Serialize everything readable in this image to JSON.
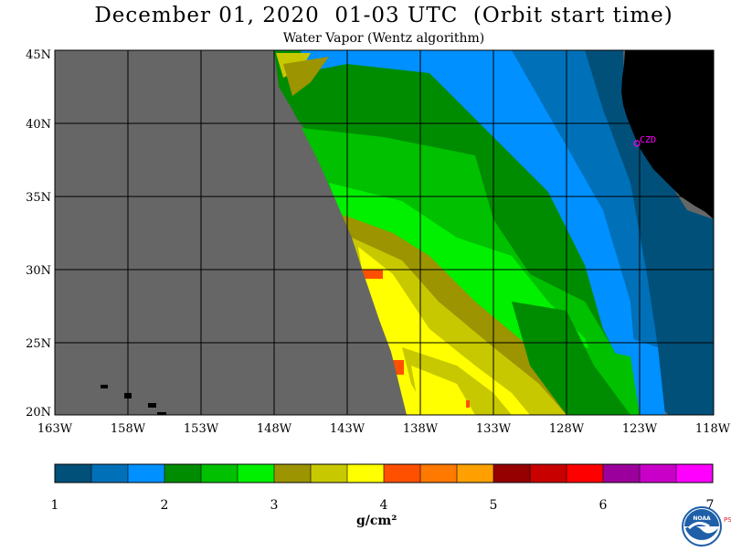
{
  "header": {
    "title": "December 01, 2020  01-03 UTC  (Orbit start time)",
    "subtitle": "Water Vapor (Wentz algorithm)"
  },
  "map": {
    "lon_labels": [
      "163W",
      "158W",
      "153W",
      "148W",
      "143W",
      "138W",
      "133W",
      "128W",
      "123W",
      "118W"
    ],
    "lat_labels": [
      "45N",
      "40N",
      "35N",
      "30N",
      "25N",
      "20N"
    ],
    "station_label": "CZD",
    "colors": {
      "no_data": "#666666",
      "land": "#000000",
      "grid": "#000000",
      "station": "#ff00ff"
    }
  },
  "colorbar": {
    "colors": [
      "#00507a",
      "#0070b8",
      "#0090ff",
      "#008c00",
      "#00c000",
      "#00f000",
      "#9c9400",
      "#c8c800",
      "#ffff00",
      "#ff5000",
      "#ff7800",
      "#ffa000",
      "#960000",
      "#c80000",
      "#ff0000",
      "#9c009c",
      "#c800c8",
      "#ff00ff"
    ],
    "tick_labels": [
      "1",
      "2",
      "3",
      "4",
      "5",
      "6",
      "7"
    ],
    "unit": "g/cm²"
  },
  "logo": {
    "name": "NOAA",
    "side_text": "PSL"
  }
}
